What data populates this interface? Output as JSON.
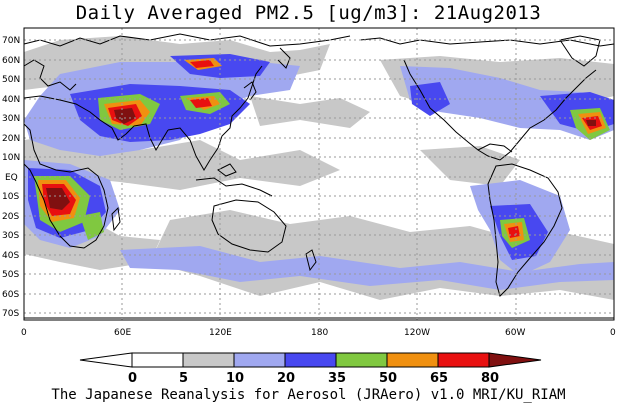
{
  "title": "Daily Averaged PM2.5 [ug/m3]: 21Aug2013",
  "footer": "The Japanese Reanalysis for Aerosol (JRAero) v1.0 MRI/KU_RIAM",
  "lat_labels": [
    "70N",
    "60N",
    "50N",
    "40N",
    "30N",
    "20N",
    "10N",
    "EQ",
    "10S",
    "20S",
    "30S",
    "40S",
    "50S",
    "60S",
    "70S"
  ],
  "lon_labels": [
    "0",
    "60E",
    "120E",
    "180",
    "120W",
    "60W",
    "0"
  ],
  "colorbar": {
    "levels": [
      "0",
      "5",
      "10",
      "20",
      "35",
      "50",
      "65",
      "80"
    ],
    "colors": [
      "#ffffff",
      "#ffffff",
      "#c8c8c8",
      "#a0a8f0",
      "#4848f0",
      "#80c840",
      "#f09010",
      "#e81010",
      "#801010"
    ]
  },
  "legend_colors": {
    "low": "#c8c8c8",
    "light": "#a0a8f0",
    "mid": "#4848f0",
    "green": "#80c840",
    "orange": "#f09010",
    "red": "#e81010",
    "darkred": "#801010"
  }
}
